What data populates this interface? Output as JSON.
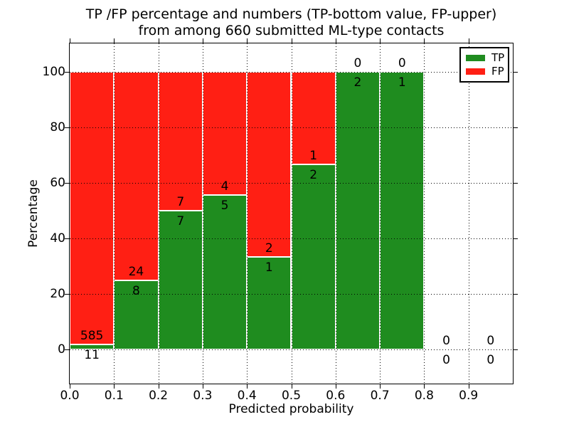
{
  "figure": {
    "title_line1": "TP /FP percentage and numbers (TP-bottom value, FP-upper)",
    "title_line2": "from among 660 submitted ML-type contacts",
    "xlabel": "Predicted probability",
    "ylabel": "Percentage"
  },
  "legend": {
    "entries": [
      {
        "label": "TP",
        "color": "#1f8c1f"
      },
      {
        "label": "FP",
        "color": "#ff1f14"
      }
    ]
  },
  "chart_data": {
    "type": "bar",
    "stacked": true,
    "normalized_to_percent": true,
    "title": "TP /FP percentage and numbers (TP-bottom value, FP-upper) from among 660 submitted ML-type contacts",
    "xlabel": "Predicted probability",
    "ylabel": "Percentage",
    "total_contacts": 660,
    "bin_start": [
      0.0,
      0.1,
      0.2,
      0.3,
      0.4,
      0.5,
      0.6,
      0.7,
      0.8,
      0.9
    ],
    "bin_width": 0.1,
    "series": [
      {
        "name": "TP",
        "color": "#1f8c1f",
        "counts": [
          11,
          8,
          7,
          5,
          1,
          2,
          2,
          1,
          0,
          0
        ]
      },
      {
        "name": "FP",
        "color": "#ff1f14",
        "counts": [
          585,
          24,
          7,
          4,
          2,
          1,
          0,
          0,
          0,
          0
        ]
      }
    ],
    "tp_percentages": [
      1.85,
      25.0,
      50.0,
      55.6,
      33.3,
      66.7,
      100.0,
      100.0,
      null,
      null
    ],
    "xlim": [
      0.0,
      1.0
    ],
    "ylim": [
      -12.3,
      110.3
    ],
    "yticks": [
      0,
      20,
      40,
      60,
      80,
      100
    ],
    "xtick_labels": [
      "0.0",
      "0.1",
      "0.2",
      "0.3",
      "0.4",
      "0.5",
      "0.6",
      "0.7",
      "0.8",
      "0.9"
    ],
    "grid": "dotted",
    "legend_position": "upper right"
  }
}
